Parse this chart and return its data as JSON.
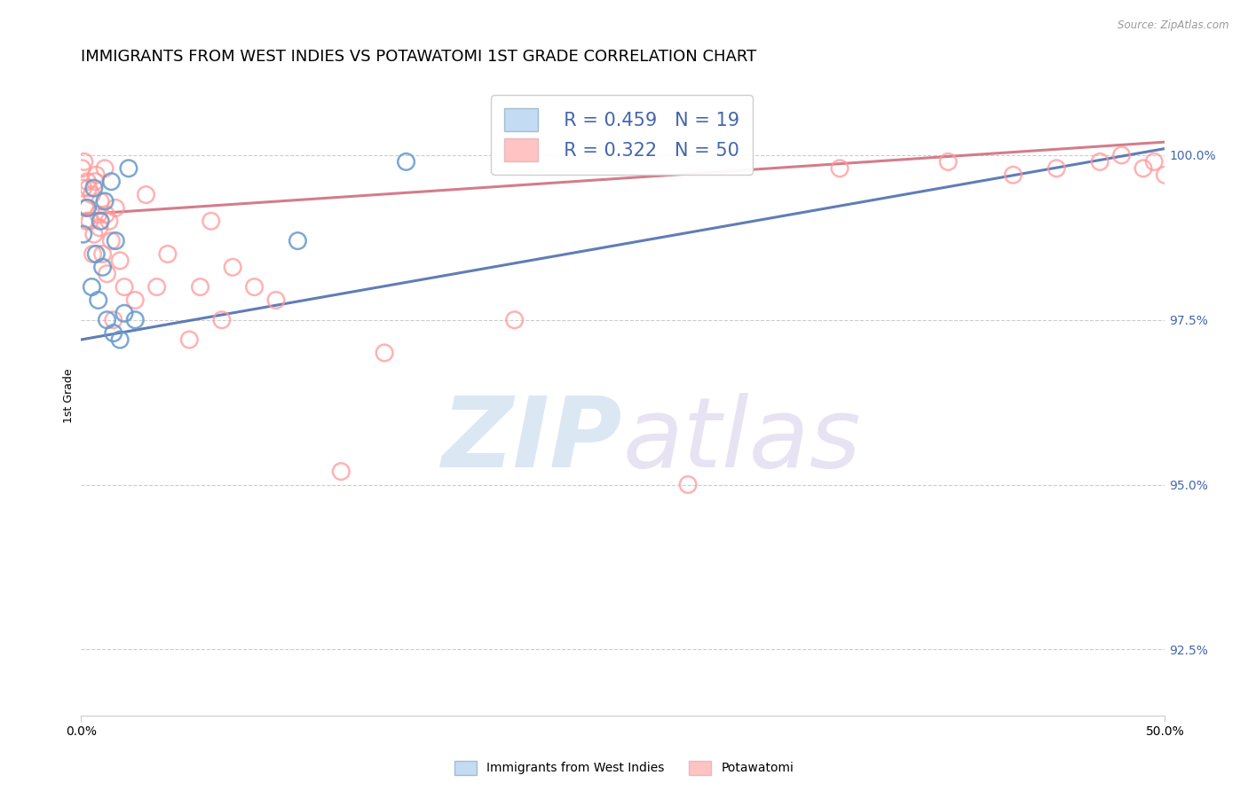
{
  "title": "IMMIGRANTS FROM WEST INDIES VS POTAWATOMI 1ST GRADE CORRELATION CHART",
  "source": "Source: ZipAtlas.com",
  "xlabel_bottom_left": "0.0%",
  "xlabel_bottom_right": "50.0%",
  "ylabel_label": "1st Grade",
  "yticks": [
    92.5,
    95.0,
    97.5,
    100.0
  ],
  "ytick_labels": [
    "92.5%",
    "95.0%",
    "97.5%",
    "100.0%"
  ],
  "xlim": [
    0.0,
    50.0
  ],
  "ylim": [
    91.5,
    101.2
  ],
  "legend_blue_r": "R = 0.459",
  "legend_blue_n": "N = 19",
  "legend_pink_r": "R = 0.322",
  "legend_pink_n": "N = 50",
  "legend_label_blue": "Immigrants from West Indies",
  "legend_label_pink": "Potawatomi",
  "blue_color": "#6699CC",
  "pink_color": "#FF9999",
  "blue_line_color": "#4466AA",
  "pink_line_color": "#CC6677",
  "blue_x": [
    0.1,
    0.3,
    0.5,
    0.6,
    0.7,
    0.8,
    0.9,
    1.0,
    1.1,
    1.2,
    1.4,
    1.5,
    1.6,
    1.8,
    2.0,
    2.2,
    2.5,
    10.0,
    15.0
  ],
  "blue_y": [
    98.8,
    99.2,
    98.0,
    99.5,
    98.5,
    97.8,
    99.0,
    98.3,
    99.3,
    97.5,
    99.6,
    97.3,
    98.7,
    97.2,
    97.6,
    99.8,
    97.5,
    98.7,
    99.9
  ],
  "pink_x": [
    0.05,
    0.1,
    0.15,
    0.2,
    0.3,
    0.4,
    0.5,
    0.6,
    0.7,
    0.8,
    0.9,
    1.0,
    1.1,
    1.2,
    1.3,
    1.4,
    1.5,
    1.6,
    1.8,
    2.0,
    2.5,
    3.0,
    3.5,
    4.0,
    5.0,
    5.5,
    6.0,
    6.5,
    7.0,
    8.0,
    9.0,
    12.0,
    14.0,
    20.0,
    28.0,
    35.0,
    40.0,
    43.0,
    45.0,
    47.0,
    48.0,
    49.0,
    49.5,
    50.0,
    0.25,
    0.35,
    0.55,
    0.65,
    0.85,
    1.15
  ],
  "pink_y": [
    99.8,
    99.5,
    99.9,
    99.2,
    99.6,
    99.0,
    99.4,
    98.8,
    99.7,
    99.1,
    99.3,
    98.5,
    99.8,
    98.2,
    99.0,
    98.7,
    97.5,
    99.2,
    98.4,
    98.0,
    97.8,
    99.4,
    98.0,
    98.5,
    97.2,
    98.0,
    99.0,
    97.5,
    98.3,
    98.0,
    97.8,
    95.2,
    97.0,
    97.5,
    95.0,
    99.8,
    99.9,
    99.7,
    99.8,
    99.9,
    100.0,
    99.8,
    99.9,
    99.7,
    99.0,
    99.5,
    98.5,
    99.6,
    98.9,
    99.1
  ],
  "blue_trend_x": [
    0.0,
    50.0
  ],
  "blue_trend_y": [
    97.2,
    100.1
  ],
  "pink_trend_x": [
    0.0,
    50.0
  ],
  "pink_trend_y": [
    99.1,
    100.2
  ],
  "watermark_zip": "ZIP",
  "watermark_atlas": "atlas",
  "background_color": "#FFFFFF",
  "grid_color": "#CCCCCC",
  "title_fontsize": 13,
  "axis_label_fontsize": 9,
  "tick_fontsize": 10
}
